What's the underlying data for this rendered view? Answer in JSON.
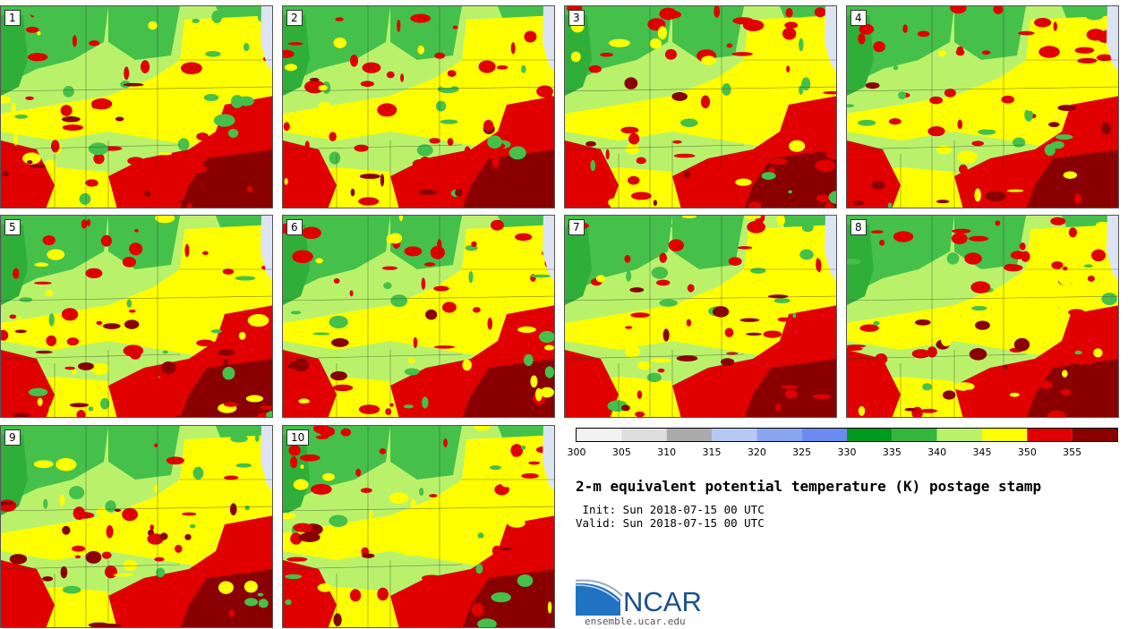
{
  "panels": [
    {
      "number": "1"
    },
    {
      "number": "2"
    },
    {
      "number": "3"
    },
    {
      "number": "4"
    },
    {
      "number": "5"
    },
    {
      "number": "6"
    },
    {
      "number": "7"
    },
    {
      "number": "8"
    },
    {
      "number": "9"
    },
    {
      "number": "10"
    }
  ],
  "colorbar": {
    "colors": [
      "#f2f2f2",
      "#dedede",
      "#ababab",
      "#b8c8f5",
      "#8aa6f0",
      "#6a8cf0",
      "#009a1e",
      "#34b53c",
      "#b9f26a",
      "#ffff00",
      "#e00000",
      "#8a0000"
    ],
    "tick_labels": [
      "300",
      "305",
      "310",
      "315",
      "320",
      "325",
      "330",
      "335",
      "340",
      "345",
      "350",
      "355"
    ]
  },
  "field_colors": {
    "dark_green": "#2fae3a",
    "mid_green": "#45c04a",
    "light_green": "#b9f26a",
    "yellow": "#ffff00",
    "red": "#e00000",
    "dark_red": "#8a0000",
    "snow": "#dce4f2"
  },
  "title": "2-m equivalent potential temperature (K) postage stamp",
  "init_line": " Init: Sun 2018-07-15 00 UTC",
  "valid_line": "Valid: Sun 2018-07-15 00 UTC",
  "logo": {
    "text": "NCAR",
    "url": "ensemble.ucar.edu"
  }
}
